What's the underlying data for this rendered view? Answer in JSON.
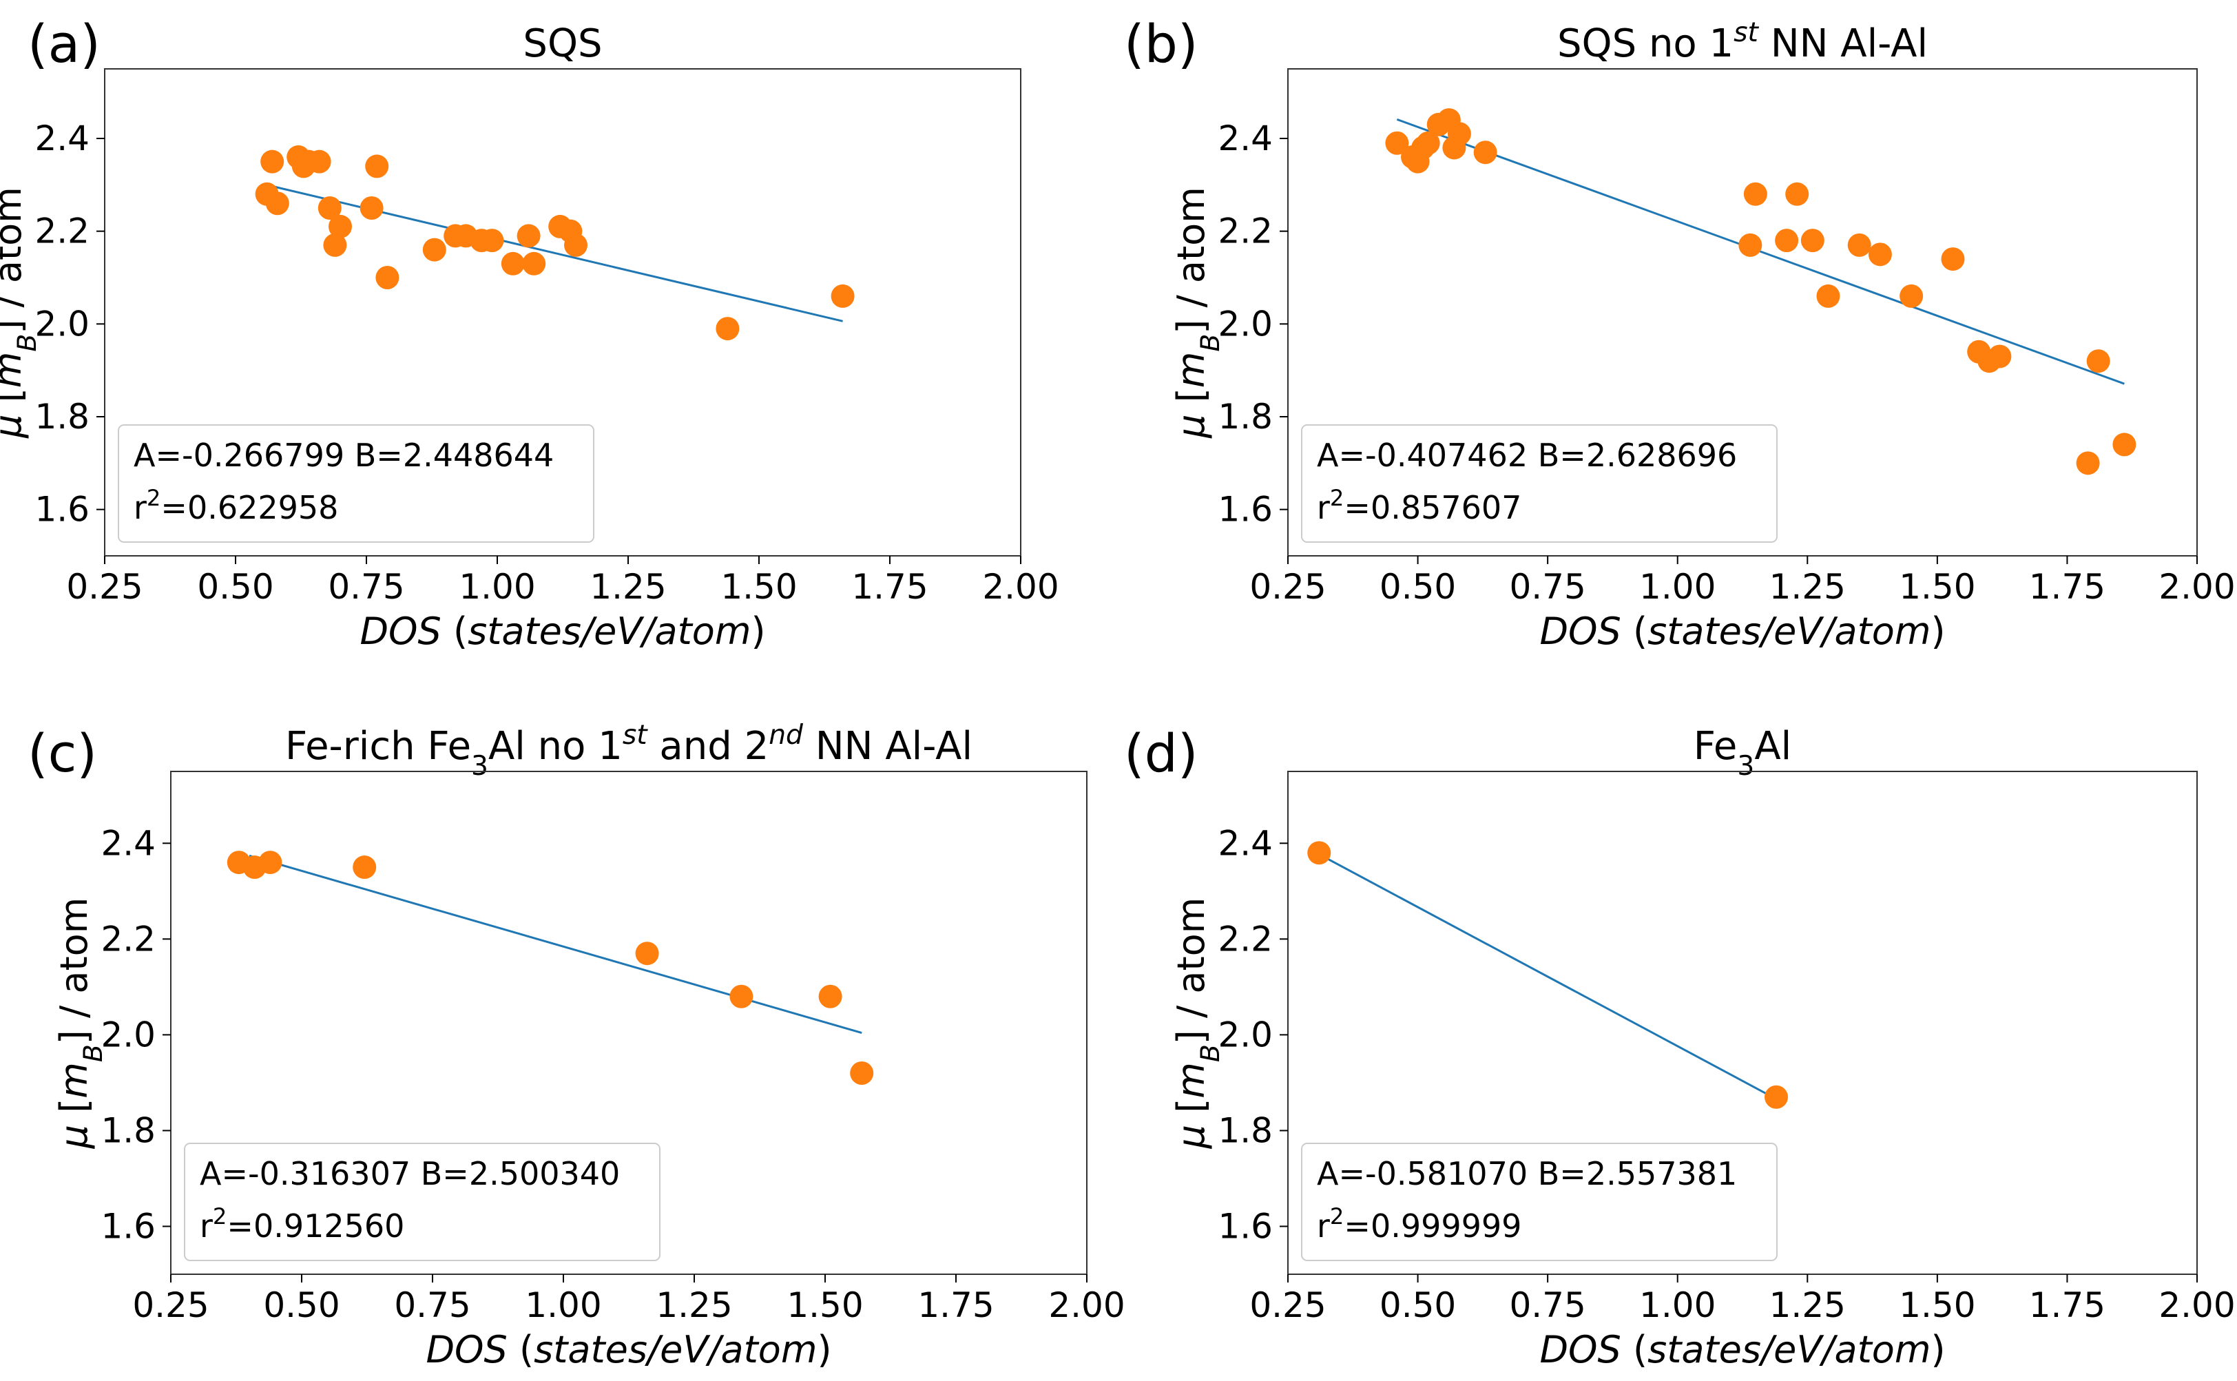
{
  "colors": {
    "points": "#ff7f0e",
    "fit": "#1f77b4"
  },
  "chart_data": [
    {
      "type": "scatter",
      "panel_label": "(a)",
      "title": "SQS",
      "title_parts": [
        {
          "text": "SQS"
        }
      ],
      "xlabel_parts": [
        {
          "text": "DOS",
          "italic": true
        },
        {
          "text": " ("
        },
        {
          "text": "states/eV/atom",
          "italic": true
        },
        {
          "text": ")"
        }
      ],
      "ylabel": "μ [m_B] / atom",
      "xlim": [
        0.25,
        2.0
      ],
      "ylim": [
        1.5,
        2.55
      ],
      "xticks": [
        "0.25",
        "0.50",
        "0.75",
        "1.00",
        "1.25",
        "1.50",
        "1.75",
        "2.00"
      ],
      "yticks": [
        "1.6",
        "1.8",
        "2.0",
        "2.2",
        "2.4"
      ],
      "x": [
        0.56,
        0.57,
        0.58,
        0.62,
        0.63,
        0.64,
        0.66,
        0.68,
        0.69,
        0.7,
        0.76,
        0.77,
        0.79,
        0.88,
        0.92,
        0.94,
        0.97,
        0.99,
        1.03,
        1.06,
        1.07,
        1.12,
        1.14,
        1.15,
        1.44,
        1.66
      ],
      "y": [
        2.28,
        2.35,
        2.26,
        2.36,
        2.34,
        2.35,
        2.35,
        2.25,
        2.17,
        2.21,
        2.25,
        2.34,
        2.1,
        2.16,
        2.19,
        2.19,
        2.18,
        2.18,
        2.13,
        2.19,
        2.13,
        2.21,
        2.2,
        2.17,
        1.99,
        2.06
      ],
      "fit_x": [
        0.57,
        1.66
      ],
      "fit_y": [
        2.297,
        2.006
      ],
      "annotation": {
        "a_text": "A=-0.266799 B=2.448644",
        "r_prefix": "r",
        "r_exp": "2",
        "r_value": "=0.622958"
      }
    },
    {
      "type": "scatter",
      "panel_label": "(b)",
      "title": "SQS no 1st NN Al-Al",
      "title_parts": [
        {
          "text": "SQS no 1"
        },
        {
          "text": "st",
          "sup": true,
          "italic": true
        },
        {
          "text": " NN Al-Al"
        }
      ],
      "xlabel_parts": [
        {
          "text": "DOS",
          "italic": true
        },
        {
          "text": " ("
        },
        {
          "text": "states/eV/atom",
          "italic": true
        },
        {
          "text": ")"
        }
      ],
      "ylabel": "μ [m_B] / atom",
      "xlim": [
        0.25,
        2.0
      ],
      "ylim": [
        1.5,
        2.55
      ],
      "xticks": [
        "0.25",
        "0.50",
        "0.75",
        "1.00",
        "1.25",
        "1.50",
        "1.75",
        "2.00"
      ],
      "yticks": [
        "1.6",
        "1.8",
        "2.0",
        "2.2",
        "2.4"
      ],
      "x": [
        0.46,
        0.49,
        0.5,
        0.51,
        0.52,
        0.54,
        0.56,
        0.57,
        0.58,
        0.63,
        1.14,
        1.15,
        1.21,
        1.23,
        1.26,
        1.29,
        1.35,
        1.39,
        1.45,
        1.53,
        1.58,
        1.6,
        1.62,
        1.79,
        1.81,
        1.86
      ],
      "y": [
        2.39,
        2.36,
        2.35,
        2.38,
        2.39,
        2.43,
        2.44,
        2.38,
        2.41,
        2.37,
        2.17,
        2.28,
        2.18,
        2.28,
        2.18,
        2.06,
        2.17,
        2.15,
        2.06,
        2.14,
        1.94,
        1.92,
        1.93,
        1.7,
        1.92,
        1.74
      ],
      "fit_x": [
        0.46,
        1.86
      ],
      "fit_y": [
        2.441,
        1.871
      ],
      "annotation": {
        "a_text": "A=-0.407462 B=2.628696",
        "r_prefix": "r",
        "r_exp": "2",
        "r_value": "=0.857607"
      }
    },
    {
      "type": "scatter",
      "panel_label": "(c)",
      "title": "Fe-rich Fe3Al no 1st and 2nd NN Al-Al",
      "title_parts": [
        {
          "text": "Fe-rich Fe"
        },
        {
          "text": "3",
          "sub": true
        },
        {
          "text": "Al no 1"
        },
        {
          "text": "st",
          "sup": true,
          "italic": true
        },
        {
          "text": " and 2"
        },
        {
          "text": "nd",
          "sup": true,
          "italic": true
        },
        {
          "text": " NN Al-Al"
        }
      ],
      "xlabel_parts": [
        {
          "text": "DOS",
          "italic": true
        },
        {
          "text": " ("
        },
        {
          "text": "states/eV/atom",
          "italic": true
        },
        {
          "text": ")"
        }
      ],
      "ylabel": "μ [m_B] / atom",
      "xlim": [
        0.25,
        2.0
      ],
      "ylim": [
        1.5,
        2.55
      ],
      "xticks": [
        "0.25",
        "0.50",
        "0.75",
        "1.00",
        "1.25",
        "1.50",
        "1.75",
        "2.00"
      ],
      "yticks": [
        "1.6",
        "1.8",
        "2.0",
        "2.2",
        "2.4"
      ],
      "x": [
        0.38,
        0.41,
        0.44,
        0.62,
        1.16,
        1.34,
        1.51,
        1.57
      ],
      "y": [
        2.36,
        2.35,
        2.36,
        2.35,
        2.17,
        2.08,
        2.08,
        1.92
      ],
      "fit_x": [
        0.4,
        1.57
      ],
      "fit_y": [
        2.374,
        2.004
      ],
      "annotation": {
        "a_text": "A=-0.316307 B=2.500340",
        "r_prefix": "r",
        "r_exp": "2",
        "r_value": "=0.912560"
      }
    },
    {
      "type": "scatter",
      "panel_label": "(d)",
      "title": "Fe3Al",
      "title_parts": [
        {
          "text": "Fe"
        },
        {
          "text": "3",
          "sub": true
        },
        {
          "text": "Al"
        }
      ],
      "xlabel_parts": [
        {
          "text": "DOS",
          "italic": true
        },
        {
          "text": " ("
        },
        {
          "text": "states/eV/atom",
          "italic": true
        },
        {
          "text": ")"
        }
      ],
      "ylabel": "μ [m_B] / atom",
      "xlim": [
        0.25,
        2.0
      ],
      "ylim": [
        1.5,
        2.55
      ],
      "xticks": [
        "0.25",
        "0.50",
        "0.75",
        "1.00",
        "1.25",
        "1.50",
        "1.75",
        "2.00"
      ],
      "yticks": [
        "1.6",
        "1.8",
        "2.0",
        "2.2",
        "2.4"
      ],
      "x": [
        0.31,
        1.19
      ],
      "y": [
        2.38,
        1.87
      ],
      "fit_x": [
        0.31,
        1.19
      ],
      "fit_y": [
        2.377,
        1.866
      ],
      "annotation": {
        "a_text": "A=-0.581070 B=2.557381",
        "r_prefix": "r",
        "r_exp": "2",
        "r_value": "=0.999999"
      }
    }
  ]
}
